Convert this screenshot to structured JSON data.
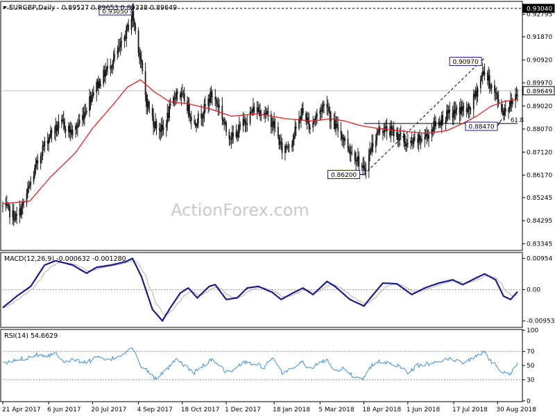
{
  "chart_data": [
    {
      "type": "candlestick",
      "symbol_label": "EURGBP,Daily",
      "ohlc_label": "0.89527 0.89653 0.89338 0.89649",
      "ylim": [
        0.831,
        0.933
      ],
      "y_ticks": [
        "0.92795",
        "0.91870",
        "0.90920",
        "0.89970",
        "0.89020",
        "0.88070",
        "0.87120",
        "0.86170",
        "0.85245",
        "0.84295",
        "0.83345"
      ],
      "current_price": "0.89649",
      "top_level": "0.93040",
      "callouts": [
        {
          "label": "0.93050",
          "price": 0.9305,
          "date": "2017-08-29"
        },
        {
          "label": "0.90970",
          "price": 0.9097,
          "date": "2018-08-16"
        },
        {
          "label": "0.88470",
          "price": 0.8847,
          "date": "2018-09-03"
        },
        {
          "label": "0.86200",
          "price": 0.862,
          "date": "2018-04-18"
        }
      ],
      "fib_label": "61.8",
      "fib_level": 0.883,
      "fib_range": [
        "2018-04-18",
        "2018-09-19"
      ],
      "trendline": [
        {
          "date": "2018-04-18",
          "price": 0.862
        },
        {
          "date": "2018-08-16",
          "price": 0.9097
        }
      ],
      "watermark": "ActionForex.com",
      "ma_color": "#e02020",
      "candle_color": "#1a1a1a",
      "anchors": [
        [
          "2017-04-21",
          0.8488
        ],
        [
          "2017-05-05",
          0.844
        ],
        [
          "2017-05-12",
          0.85
        ],
        [
          "2017-05-30",
          0.872
        ],
        [
          "2017-06-08",
          0.879
        ],
        [
          "2017-06-20",
          0.883
        ],
        [
          "2017-06-30",
          0.879
        ],
        [
          "2017-07-10",
          0.886
        ],
        [
          "2017-07-20",
          0.896
        ],
        [
          "2017-07-28",
          0.901
        ],
        [
          "2017-08-08",
          0.908
        ],
        [
          "2017-08-18",
          0.915
        ],
        [
          "2017-08-29",
          0.928
        ],
        [
          "2017-09-05",
          0.912
        ],
        [
          "2017-09-12",
          0.892
        ],
        [
          "2017-09-20",
          0.883
        ],
        [
          "2017-09-28",
          0.88
        ],
        [
          "2017-10-05",
          0.888
        ],
        [
          "2017-10-12",
          0.896
        ],
        [
          "2017-10-20",
          0.893
        ],
        [
          "2017-10-30",
          0.883
        ],
        [
          "2017-11-08",
          0.888
        ],
        [
          "2017-11-16",
          0.895
        ],
        [
          "2017-11-24",
          0.89
        ],
        [
          "2017-12-01",
          0.88
        ],
        [
          "2017-12-08",
          0.877
        ],
        [
          "2017-12-18",
          0.883
        ],
        [
          "2017-12-29",
          0.889
        ],
        [
          "2018-01-08",
          0.888
        ],
        [
          "2018-01-18",
          0.882
        ],
        [
          "2018-01-26",
          0.872
        ],
        [
          "2018-02-05",
          0.876
        ],
        [
          "2018-02-15",
          0.888
        ],
        [
          "2018-02-23",
          0.882
        ],
        [
          "2018-03-06",
          0.889
        ],
        [
          "2018-03-12",
          0.892
        ],
        [
          "2018-03-16",
          0.884
        ],
        [
          "2018-03-26",
          0.879
        ],
        [
          "2018-04-04",
          0.872
        ],
        [
          "2018-04-11",
          0.869
        ],
        [
          "2018-04-18",
          0.863
        ],
        [
          "2018-04-26",
          0.874
        ],
        [
          "2018-05-04",
          0.881
        ],
        [
          "2018-05-14",
          0.88
        ],
        [
          "2018-05-23",
          0.878
        ],
        [
          "2018-06-01",
          0.874
        ],
        [
          "2018-06-11",
          0.876
        ],
        [
          "2018-06-20",
          0.878
        ],
        [
          "2018-06-29",
          0.883
        ],
        [
          "2018-07-09",
          0.886
        ],
        [
          "2018-07-16",
          0.887
        ],
        [
          "2018-07-24",
          0.889
        ],
        [
          "2018-08-01",
          0.888
        ],
        [
          "2018-08-08",
          0.895
        ],
        [
          "2018-08-16",
          0.905
        ],
        [
          "2018-08-24",
          0.898
        ],
        [
          "2018-08-30",
          0.893
        ],
        [
          "2018-09-04",
          0.888
        ],
        [
          "2018-09-12",
          0.891
        ],
        [
          "2018-09-19",
          0.8965
        ]
      ],
      "ma_anchors": [
        [
          "2017-04-21",
          0.85
        ],
        [
          "2017-05-18",
          0.851
        ],
        [
          "2017-06-08",
          0.861
        ],
        [
          "2017-07-03",
          0.871
        ],
        [
          "2017-07-20",
          0.881
        ],
        [
          "2017-08-08",
          0.89
        ],
        [
          "2017-08-24",
          0.898
        ],
        [
          "2017-09-06",
          0.901
        ],
        [
          "2017-09-20",
          0.896
        ],
        [
          "2017-10-05",
          0.892
        ],
        [
          "2017-10-25",
          0.891
        ],
        [
          "2017-11-15",
          0.889
        ],
        [
          "2017-12-06",
          0.886
        ],
        [
          "2018-01-02",
          0.887
        ],
        [
          "2018-01-29",
          0.885
        ],
        [
          "2018-02-26",
          0.884
        ],
        [
          "2018-03-16",
          0.885
        ],
        [
          "2018-03-30",
          0.884
        ],
        [
          "2018-04-16",
          0.882
        ],
        [
          "2018-05-02",
          0.881
        ],
        [
          "2018-05-23",
          0.88
        ],
        [
          "2018-06-18",
          0.879
        ],
        [
          "2018-07-10",
          0.88
        ],
        [
          "2018-07-26",
          0.883
        ],
        [
          "2018-08-09",
          0.886
        ],
        [
          "2018-08-23",
          0.89
        ],
        [
          "2018-09-05",
          0.892
        ],
        [
          "2018-09-19",
          0.893
        ]
      ],
      "x_tick_labels": [
        {
          "date": "2017-04-21",
          "label": "21 Apr 2017"
        },
        {
          "date": "2017-06-06",
          "label": "6 Jun 2017"
        },
        {
          "date": "2017-07-20",
          "label": "20 Jul 2017"
        },
        {
          "date": "2017-09-04",
          "label": "4 Sep 2017"
        },
        {
          "date": "2017-10-18",
          "label": "18 Oct 2017"
        },
        {
          "date": "2017-12-01",
          "label": "1 Dec 2017"
        },
        {
          "date": "2018-01-18",
          "label": "18 Jan 2018"
        },
        {
          "date": "2018-03-05",
          "label": "5 Mar 2018"
        },
        {
          "date": "2018-04-18",
          "label": "18 Apr 2018"
        },
        {
          "date": "2018-06-01",
          "label": "1 Jun 2018"
        },
        {
          "date": "2018-07-17",
          "label": "17 Jul 2018"
        },
        {
          "date": "2018-08-30",
          "label": "30 Aug 2018"
        }
      ]
    },
    {
      "type": "line",
      "title": "MACD(12,26,9) -0.000632 -0.001280",
      "ylim": [
        -0.0113,
        0.0111
      ],
      "y_ticks": [
        "0.00954",
        "0.00",
        "-0.009538"
      ],
      "macd_color": "#1a1a8c",
      "signal_color": "#b0b0b0",
      "macd_anchors": [
        [
          "2017-04-21",
          -0.0055
        ],
        [
          "2017-05-05",
          -0.002
        ],
        [
          "2017-05-19",
          0.001
        ],
        [
          "2017-06-02",
          0.0075
        ],
        [
          "2017-06-13",
          0.0088
        ],
        [
          "2017-06-30",
          0.0075
        ],
        [
          "2017-07-14",
          0.005
        ],
        [
          "2017-07-24",
          0.0068
        ],
        [
          "2017-08-08",
          0.0075
        ],
        [
          "2017-08-22",
          0.0085
        ],
        [
          "2017-08-29",
          0.0095
        ],
        [
          "2017-09-07",
          0.004
        ],
        [
          "2017-09-18",
          -0.006
        ],
        [
          "2017-09-28",
          -0.0095
        ],
        [
          "2017-10-06",
          -0.0055
        ],
        [
          "2017-10-16",
          -0.001
        ],
        [
          "2017-10-24",
          0.0005
        ],
        [
          "2017-11-02",
          -0.0025
        ],
        [
          "2017-11-14",
          0.001
        ],
        [
          "2017-11-20",
          0.0015
        ],
        [
          "2017-12-01",
          -0.003
        ],
        [
          "2017-12-12",
          -0.0025
        ],
        [
          "2017-12-22",
          0.0005
        ],
        [
          "2018-01-02",
          0.001
        ],
        [
          "2018-01-16",
          -0.0008
        ],
        [
          "2018-01-25",
          -0.003
        ],
        [
          "2018-02-06",
          -0.001
        ],
        [
          "2018-02-16",
          0.0005
        ],
        [
          "2018-02-26",
          -0.0015
        ],
        [
          "2018-03-12",
          0.0025
        ],
        [
          "2018-03-20",
          0.001
        ],
        [
          "2018-04-04",
          -0.003
        ],
        [
          "2018-04-18",
          -0.005
        ],
        [
          "2018-04-26",
          -0.002
        ],
        [
          "2018-05-07",
          0.002
        ],
        [
          "2018-05-21",
          0.0018
        ],
        [
          "2018-06-05",
          -0.0015
        ],
        [
          "2018-06-18",
          0.0005
        ],
        [
          "2018-07-02",
          0.002
        ],
        [
          "2018-07-16",
          0.003
        ],
        [
          "2018-07-26",
          0.0015
        ],
        [
          "2018-08-08",
          0.0035
        ],
        [
          "2018-08-17",
          0.0048
        ],
        [
          "2018-08-28",
          0.003
        ],
        [
          "2018-09-05",
          -0.002
        ],
        [
          "2018-09-12",
          -0.003
        ],
        [
          "2018-09-19",
          -0.0006
        ]
      ]
    },
    {
      "type": "line",
      "title": "RSI(14) 54.6629",
      "ylim": [
        0,
        100
      ],
      "y_ticks": [
        "100",
        "70",
        "50",
        "30",
        "0"
      ],
      "levels": [
        70,
        30
      ],
      "rsi_color": "#3a8fd6",
      "rsi_anchors": [
        [
          "2017-04-21",
          52
        ],
        [
          "2017-05-05",
          58
        ],
        [
          "2017-05-15",
          61
        ],
        [
          "2017-05-25",
          66
        ],
        [
          "2017-06-05",
          64
        ],
        [
          "2017-06-13",
          68
        ],
        [
          "2017-06-22",
          56
        ],
        [
          "2017-07-03",
          58
        ],
        [
          "2017-07-14",
          54
        ],
        [
          "2017-07-24",
          62
        ],
        [
          "2017-08-04",
          57
        ],
        [
          "2017-08-16",
          64
        ],
        [
          "2017-08-29",
          75
        ],
        [
          "2017-09-05",
          52
        ],
        [
          "2017-09-12",
          44
        ],
        [
          "2017-09-20",
          32
        ],
        [
          "2017-09-28",
          38
        ],
        [
          "2017-10-05",
          48
        ],
        [
          "2017-10-12",
          58
        ],
        [
          "2017-10-20",
          50
        ],
        [
          "2017-10-30",
          40
        ],
        [
          "2017-11-08",
          50
        ],
        [
          "2017-11-16",
          58
        ],
        [
          "2017-11-24",
          52
        ],
        [
          "2017-12-01",
          40
        ],
        [
          "2017-12-08",
          43
        ],
        [
          "2017-12-18",
          55
        ],
        [
          "2017-12-29",
          52
        ],
        [
          "2018-01-08",
          48
        ],
        [
          "2018-01-16",
          60
        ],
        [
          "2018-01-26",
          40
        ],
        [
          "2018-02-05",
          46
        ],
        [
          "2018-02-15",
          55
        ],
        [
          "2018-02-23",
          45
        ],
        [
          "2018-03-06",
          55
        ],
        [
          "2018-03-12",
          58
        ],
        [
          "2018-03-20",
          44
        ],
        [
          "2018-03-30",
          46
        ],
        [
          "2018-04-06",
          36
        ],
        [
          "2018-04-18",
          32
        ],
        [
          "2018-04-26",
          50
        ],
        [
          "2018-05-04",
          56
        ],
        [
          "2018-05-14",
          52
        ],
        [
          "2018-05-23",
          50
        ],
        [
          "2018-06-01",
          41
        ],
        [
          "2018-06-11",
          50
        ],
        [
          "2018-06-20",
          52
        ],
        [
          "2018-06-29",
          55
        ],
        [
          "2018-07-09",
          60
        ],
        [
          "2018-07-16",
          58
        ],
        [
          "2018-07-26",
          55
        ],
        [
          "2018-08-08",
          62
        ],
        [
          "2018-08-16",
          70
        ],
        [
          "2018-08-24",
          55
        ],
        [
          "2018-09-04",
          42
        ],
        [
          "2018-09-12",
          38
        ],
        [
          "2018-09-19",
          54.66
        ]
      ]
    }
  ]
}
